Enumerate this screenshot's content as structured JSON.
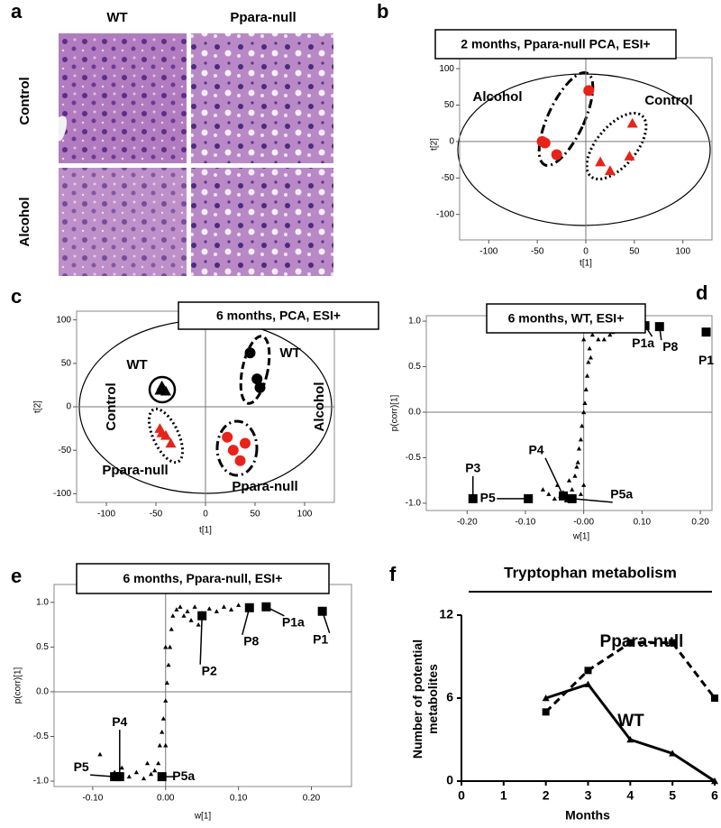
{
  "panel_labels": [
    "a",
    "b",
    "c",
    "d",
    "e",
    "f"
  ],
  "histology": {
    "columns": [
      "WT",
      "Ppara-null"
    ],
    "rows": [
      "Control",
      "Alcohol"
    ]
  },
  "chart_data": [
    {
      "type": "scatter",
      "title": "2 months, Ppara-null PCA, ESI+",
      "xlabel": "t[1]",
      "ylabel": "t[2]",
      "xlim": [
        -130,
        130
      ],
      "ylim": [
        -135,
        115
      ],
      "xticks": [
        -100,
        -50,
        0,
        50,
        100
      ],
      "yticks": [
        -100,
        -50,
        0,
        50,
        100
      ],
      "zero_lines": true,
      "series": [
        {
          "name": "Alcohol",
          "color": "#e8231a",
          "marker": "circle",
          "x": [
            3,
            -45,
            -42,
            -30
          ],
          "values": [
            70,
            0,
            -2,
            -18
          ]
        },
        {
          "name": "Control",
          "color": "#e8231a",
          "marker": "triangle",
          "x": [
            48,
            15,
            25,
            45
          ],
          "values": [
            25,
            -28,
            -40,
            -20
          ]
        }
      ]
    },
    {
      "type": "scatter",
      "title": "6 months, PCA, ESI+",
      "xlabel": "t[1]",
      "ylabel": "t[2]",
      "xlim": [
        -130,
        130
      ],
      "ylim": [
        -110,
        110
      ],
      "xticks": [
        -100,
        -50,
        0,
        50,
        100
      ],
      "yticks": [
        -100,
        -50,
        0,
        50,
        100
      ],
      "zero_lines": true,
      "annotations": [
        "Control",
        "Alcohol"
      ],
      "series": [
        {
          "name": "WT",
          "color": "#000000",
          "marker": "triangle",
          "x": [
            -46,
            -43,
            -40,
            -44
          ],
          "values": [
            19,
            22,
            18,
            24
          ]
        },
        {
          "name": "Ppara-null",
          "color": "#e8231a",
          "marker": "triangle",
          "x": [
            -46,
            -44,
            -40,
            -35
          ],
          "values": [
            -25,
            -30,
            -33,
            -42
          ]
        },
        {
          "name": "WT",
          "color": "#000000",
          "marker": "circle",
          "x": [
            45,
            52,
            55
          ],
          "values": [
            62,
            32,
            22
          ]
        },
        {
          "name": "Ppara-null",
          "color": "#e8231a",
          "marker": "circle",
          "x": [
            22,
            40,
            28,
            35
          ],
          "values": [
            -35,
            -42,
            -50,
            -62
          ]
        }
      ]
    },
    {
      "type": "scatter",
      "title": "6 months, WT, ESI+",
      "xlabel": "w[1]",
      "ylabel": "p(corr)[1]",
      "xlim": [
        -0.27,
        0.22
      ],
      "ylim": [
        -1.08,
        1.06
      ],
      "xticks": [
        {
          "value": -0.2,
          "label": "-0.20"
        },
        {
          "value": -0.1,
          "label": "-0.10"
        },
        {
          "value": 0,
          "label": "-0.00"
        },
        {
          "value": 0.1,
          "label": "0.10"
        },
        {
          "value": 0.2,
          "label": "0.20"
        }
      ],
      "yticks": [
        {
          "value": -1,
          "label": "-1.0"
        },
        -0.5,
        {
          "value": 0,
          "label": "0.0"
        },
        0.5,
        {
          "value": 1,
          "label": "1.0"
        }
      ],
      "zero_lines": true,
      "series": [
        {
          "color": "#000000",
          "marker": "dot",
          "x": [
            -0.06,
            -0.05,
            -0.04,
            -0.03,
            -0.02,
            -0.015,
            -0.01,
            -0.008,
            -0.005,
            -0.003,
            0,
            0.002,
            0.004,
            0.006,
            0.008,
            0.01,
            0.015,
            0.02,
            0.03,
            0.04,
            0.05,
            0.06,
            0.07,
            0.08,
            -0.025,
            -0.012,
            0.012,
            0.025,
            -0.035,
            -0.045,
            0.035,
            0.045,
            0.005,
            0,
            -0.005,
            0,
            -0.07,
            0.09
          ],
          "values": [
            -0.9,
            -0.95,
            -0.92,
            -0.97,
            -0.85,
            -0.7,
            -0.55,
            -0.4,
            -0.3,
            -0.15,
            0,
            0.1,
            0.25,
            0.4,
            0.55,
            0.7,
            0.85,
            0.95,
            0.9,
            0.95,
            0.88,
            0.92,
            0.97,
            0.9,
            -0.75,
            -0.6,
            0.6,
            0.8,
            -0.88,
            -0.8,
            0.8,
            0.85,
            0.9,
            0.8,
            -0.9,
            -0.8,
            -0.85,
            0.92
          ]
        },
        {
          "color": "#000000",
          "marker": "square",
          "labels": [
            "P1",
            "P8",
            "P1a",
            "P3",
            "P5",
            "P4",
            "P5a"
          ],
          "x": [
            0.21,
            0.13,
            0.105,
            -0.19,
            -0.095,
            -0.035,
            -0.02
          ],
          "values": [
            0.88,
            0.94,
            0.95,
            -0.95,
            -0.95,
            -0.92,
            -0.95
          ]
        }
      ]
    },
    {
      "type": "scatter",
      "title": "6 months, Ppara-null, ESI+",
      "xlabel": "w[1]",
      "ylabel": "p(corr)[1]",
      "xlim": [
        -0.153,
        0.255
      ],
      "ylim": [
        -1.06,
        1.2
      ],
      "xticks": [
        {
          "value": -0.1,
          "label": "-0.10"
        },
        {
          "value": 0,
          "label": "0.00"
        },
        {
          "value": 0.1,
          "label": "0.10"
        },
        {
          "value": 0.2,
          "label": "0.20"
        }
      ],
      "yticks": [
        {
          "value": -1,
          "label": "-1.0"
        },
        -0.5,
        {
          "value": 0,
          "label": "0.0"
        },
        0.5,
        {
          "value": 1,
          "label": "1.0"
        }
      ],
      "zero_lines": true,
      "series": [
        {
          "color": "#000000",
          "marker": "dot",
          "x": [
            -0.05,
            -0.04,
            -0.03,
            -0.02,
            -0.01,
            -0.008,
            -0.005,
            -0.003,
            0,
            0.002,
            0.004,
            0.006,
            0.008,
            0.01,
            0.015,
            0.02,
            0.03,
            0.04,
            0.05,
            0.06,
            0.07,
            0.08,
            0.09,
            -0.06,
            -0.07,
            -0.015,
            0.025,
            0.035,
            0.045,
            -0.025,
            0,
            0,
            -0.09,
            0.1
          ],
          "values": [
            -0.95,
            -0.9,
            -0.97,
            -0.92,
            -0.8,
            -0.6,
            -0.45,
            -0.3,
            -0.1,
            0.1,
            0.3,
            0.5,
            0.7,
            0.85,
            0.92,
            0.95,
            0.9,
            0.95,
            0.88,
            0.93,
            0.9,
            0.95,
            0.92,
            -0.85,
            -0.9,
            -0.88,
            0.85,
            0.8,
            0.75,
            -0.8,
            0.5,
            -0.6,
            -0.7,
            0.97
          ]
        },
        {
          "color": "#000000",
          "marker": "square",
          "labels": [
            "P1",
            "P1a",
            "P8",
            "P2",
            "P4",
            "P5",
            "P5a"
          ],
          "x": [
            0.215,
            0.138,
            0.115,
            0.05,
            -0.063,
            -0.07,
            -0.005
          ],
          "values": [
            0.9,
            0.95,
            0.94,
            0.85,
            -0.95,
            -0.95,
            -0.95
          ]
        }
      ]
    },
    {
      "type": "line",
      "title": "Tryptophan metabolism",
      "xlabel": "Months",
      "ylabel": "Number of potential metabolites",
      "x": [
        2,
        3,
        4,
        5,
        6
      ],
      "xlim": [
        0,
        6
      ],
      "ylim": [
        0,
        12
      ],
      "xticks": [
        0,
        1,
        2,
        3,
        4,
        5,
        6
      ],
      "yticks": [
        0,
        6,
        12
      ],
      "series": [
        {
          "name": "Ppara-null",
          "color": "#000000",
          "marker": "square",
          "line_style": "dashed",
          "values": [
            5,
            8,
            10,
            10,
            6
          ]
        },
        {
          "name": "WT",
          "color": "#000000",
          "marker": "triangle",
          "line_style": "solid",
          "values": [
            6,
            7,
            3,
            2,
            0
          ]
        }
      ]
    }
  ]
}
